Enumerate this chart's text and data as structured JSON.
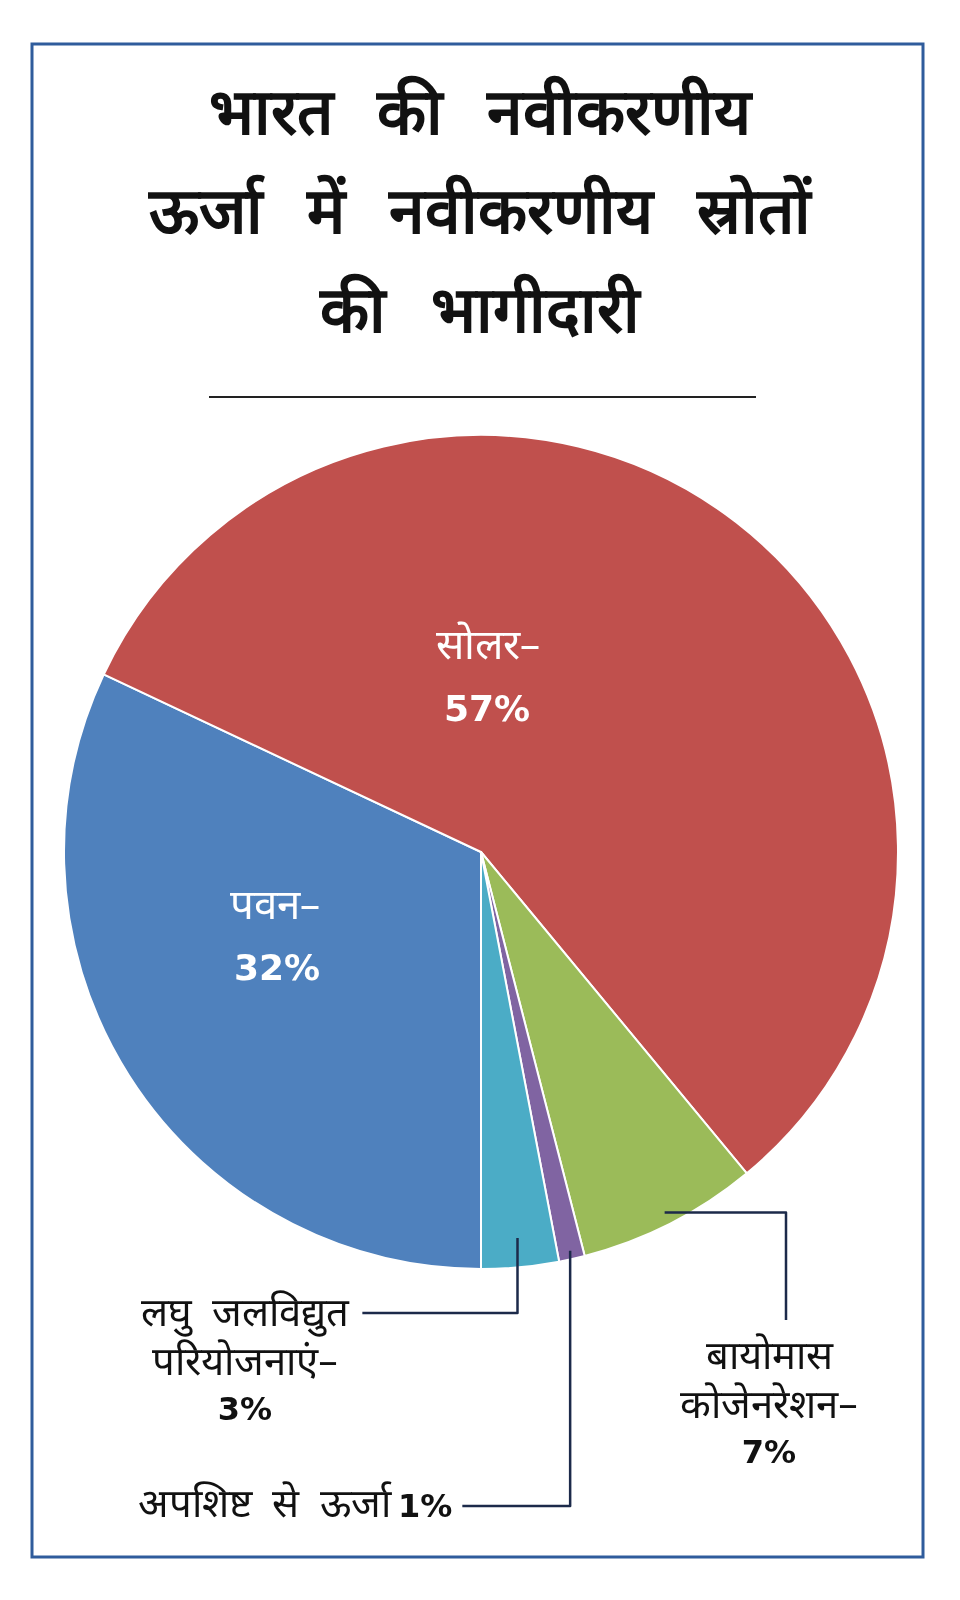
{
  "chart_data": {
    "type": "pie",
    "title": "भारत की नवीकरणीय\nऊर्जा में नवीकरणीय स्रोतों\nकी भागीदारी",
    "categories": [
      "पवन–",
      "सोलर–",
      "बायोमास\nकोजेनरेशन–",
      "अपशिष्ट से ऊर्जा",
      "लघु जलविद्युत\nपरियोजनाएं–"
    ],
    "values": [
      32,
      57,
      7,
      1,
      3
    ],
    "colors": [
      "#4f81bd",
      "#c0504d",
      "#9bbb59",
      "#8064a2",
      "#4bacc6"
    ],
    "value_labels": [
      "32%",
      "57%",
      "7%",
      "1%",
      "3%"
    ]
  }
}
